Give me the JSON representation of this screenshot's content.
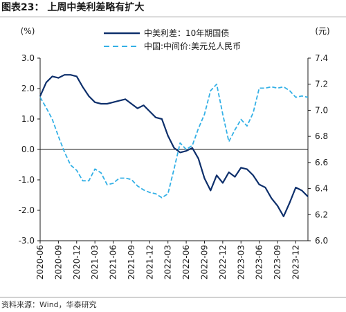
{
  "header": {
    "title": "图表23： 上周中美利差略有扩大"
  },
  "footer": {
    "source": "资料来源：Wind，华泰研究"
  },
  "chart_data": {
    "type": "line",
    "left_unit": "(%)",
    "right_unit": "(元)",
    "y_left": {
      "min": -3.0,
      "max": 3.0,
      "ticks": [
        "3.0",
        "2.0",
        "1.0",
        "0.0",
        "-1.0",
        "-2.0",
        "-3.0"
      ]
    },
    "y_right": {
      "min": 6.0,
      "max": 7.4,
      "ticks": [
        "7.4",
        "7.2",
        "7.0",
        "6.8",
        "6.6",
        "6.4",
        "6.2",
        "6.0"
      ]
    },
    "x_tick_labels": [
      "2020-06",
      "2020-09",
      "2020-12",
      "2021-03",
      "2021-06",
      "2021-09",
      "2021-12",
      "2022-03",
      "2022-06",
      "2022-09",
      "2022-12",
      "2023-03",
      "2023-06",
      "2023-09",
      "2023-12"
    ],
    "x_range": [
      "2020-06",
      "2024-02"
    ],
    "legend_position": "top-right",
    "grid": false,
    "series": [
      {
        "name": "中美利差：10年期国债",
        "axis": "left",
        "color": "#0d2f6b",
        "style": "solid",
        "points": [
          [
            "2020-06",
            1.75
          ],
          [
            "2020-07",
            2.2
          ],
          [
            "2020-08",
            2.4
          ],
          [
            "2020-09",
            2.35
          ],
          [
            "2020-10",
            2.45
          ],
          [
            "2020-11",
            2.45
          ],
          [
            "2020-12",
            2.4
          ],
          [
            "2021-01",
            2.05
          ],
          [
            "2021-02",
            1.75
          ],
          [
            "2021-03",
            1.55
          ],
          [
            "2021-04",
            1.5
          ],
          [
            "2021-05",
            1.5
          ],
          [
            "2021-06",
            1.55
          ],
          [
            "2021-07",
            1.6
          ],
          [
            "2021-08",
            1.65
          ],
          [
            "2021-09",
            1.5
          ],
          [
            "2021-10",
            1.35
          ],
          [
            "2021-11",
            1.45
          ],
          [
            "2021-12",
            1.25
          ],
          [
            "2022-01",
            1.05
          ],
          [
            "2022-02",
            1.0
          ],
          [
            "2022-03",
            0.45
          ],
          [
            "2022-04",
            0.05
          ],
          [
            "2022-05",
            -0.1
          ],
          [
            "2022-06",
            -0.05
          ],
          [
            "2022-07",
            0.05
          ],
          [
            "2022-08",
            -0.3
          ],
          [
            "2022-09",
            -0.95
          ],
          [
            "2022-10",
            -1.35
          ],
          [
            "2022-11",
            -0.85
          ],
          [
            "2022-12",
            -1.1
          ],
          [
            "2023-01",
            -0.75
          ],
          [
            "2023-02",
            -0.9
          ],
          [
            "2023-03",
            -0.6
          ],
          [
            "2023-04",
            -0.65
          ],
          [
            "2023-05",
            -0.85
          ],
          [
            "2023-06",
            -1.15
          ],
          [
            "2023-07",
            -1.25
          ],
          [
            "2023-08",
            -1.6
          ],
          [
            "2023-09",
            -1.85
          ],
          [
            "2023-10",
            -2.2
          ],
          [
            "2023-11",
            -1.75
          ],
          [
            "2023-12",
            -1.25
          ],
          [
            "2024-01",
            -1.35
          ],
          [
            "2024-02",
            -1.55
          ]
        ]
      },
      {
        "name": "中国:中间价:美元兑人民币",
        "axis": "right",
        "color": "#33b0e6",
        "style": "dashed",
        "points": [
          [
            "2020-06",
            7.1
          ],
          [
            "2020-07",
            7.02
          ],
          [
            "2020-08",
            6.93
          ],
          [
            "2020-09",
            6.8
          ],
          [
            "2020-10",
            6.68
          ],
          [
            "2020-11",
            6.58
          ],
          [
            "2020-12",
            6.54
          ],
          [
            "2021-01",
            6.46
          ],
          [
            "2021-02",
            6.46
          ],
          [
            "2021-03",
            6.55
          ],
          [
            "2021-04",
            6.52
          ],
          [
            "2021-05",
            6.43
          ],
          [
            "2021-06",
            6.44
          ],
          [
            "2021-07",
            6.48
          ],
          [
            "2021-08",
            6.48
          ],
          [
            "2021-09",
            6.47
          ],
          [
            "2021-10",
            6.42
          ],
          [
            "2021-11",
            6.39
          ],
          [
            "2021-12",
            6.37
          ],
          [
            "2022-01",
            6.36
          ],
          [
            "2022-02",
            6.33
          ],
          [
            "2022-03",
            6.36
          ],
          [
            "2022-04",
            6.55
          ],
          [
            "2022-05",
            6.75
          ],
          [
            "2022-06",
            6.7
          ],
          [
            "2022-07",
            6.73
          ],
          [
            "2022-08",
            6.86
          ],
          [
            "2022-09",
            6.97
          ],
          [
            "2022-10",
            7.15
          ],
          [
            "2022-11",
            7.2
          ],
          [
            "2022-12",
            6.97
          ],
          [
            "2023-01",
            6.76
          ],
          [
            "2023-02",
            6.85
          ],
          [
            "2023-03",
            6.93
          ],
          [
            "2023-04",
            6.88
          ],
          [
            "2023-05",
            6.98
          ],
          [
            "2023-06",
            7.17
          ],
          [
            "2023-07",
            7.17
          ],
          [
            "2023-08",
            7.18
          ],
          [
            "2023-09",
            7.17
          ],
          [
            "2023-10",
            7.18
          ],
          [
            "2023-11",
            7.15
          ],
          [
            "2023-12",
            7.1
          ],
          [
            "2024-01",
            7.11
          ],
          [
            "2024-02",
            7.1
          ]
        ]
      }
    ]
  }
}
